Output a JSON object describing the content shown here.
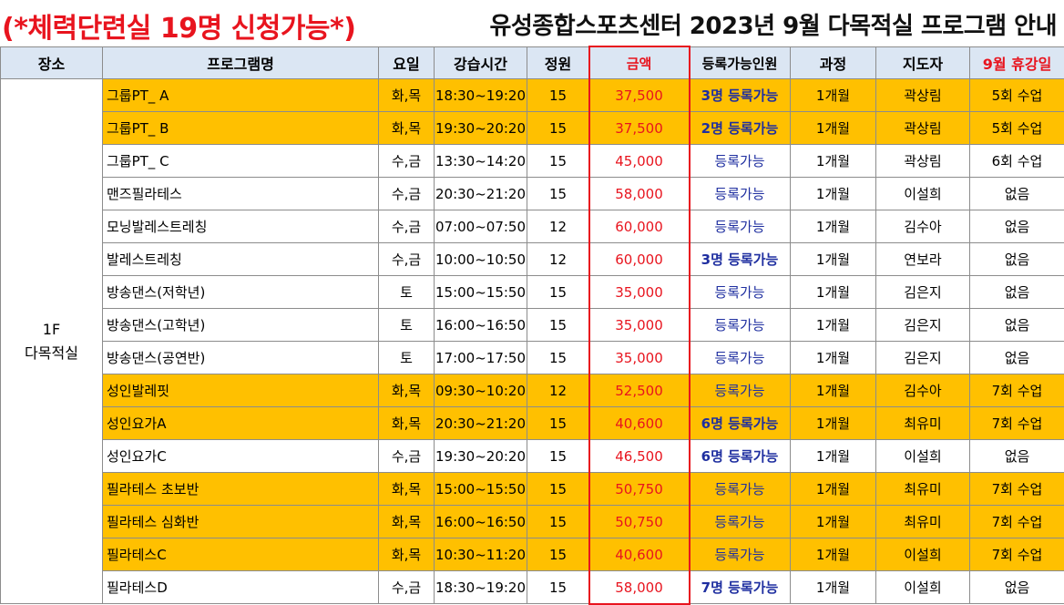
{
  "header": {
    "notice": "(*체력단련실 19명 신청가능*)",
    "title": "유성종합스포츠센터  2023년 9월 다목적실 프로그램 안내"
  },
  "columns": [
    "장소",
    "프로그램명",
    "요일",
    "강습시간",
    "정원",
    "금액",
    "등록가능인원",
    "과정",
    "지도자",
    "9월 휴강일"
  ],
  "location": {
    "line1": "1F",
    "line2": "다목적실"
  },
  "rows": [
    {
      "program": "그룹PT_ A",
      "days": "화,목",
      "time": "18:30~19:20",
      "capacity": "15",
      "price": "37,500",
      "available": "3명 등록가능",
      "course": "1개월",
      "instructor": "곽상림",
      "rest": "5회 수업",
      "highlight": true,
      "avail_bold": true
    },
    {
      "program": "그룹PT_ B",
      "days": "화,목",
      "time": "19:30~20:20",
      "capacity": "15",
      "price": "37,500",
      "available": "2명 등록가능",
      "course": "1개월",
      "instructor": "곽상림",
      "rest": "5회 수업",
      "highlight": true,
      "avail_bold": true
    },
    {
      "program": "그룹PT_ C",
      "days": "수,금",
      "time": "13:30~14:20",
      "capacity": "15",
      "price": "45,000",
      "available": "등록가능",
      "course": "1개월",
      "instructor": "곽상림",
      "rest": "6회 수업",
      "highlight": false,
      "avail_bold": false
    },
    {
      "program": "맨즈필라테스",
      "days": "수,금",
      "time": "20:30~21:20",
      "capacity": "15",
      "price": "58,000",
      "available": "등록가능",
      "course": "1개월",
      "instructor": "이설희",
      "rest": "없음",
      "highlight": false,
      "avail_bold": false
    },
    {
      "program": "모닝발레스트레칭",
      "days": "수,금",
      "time": "07:00~07:50",
      "capacity": "12",
      "price": "60,000",
      "available": "등록가능",
      "course": "1개월",
      "instructor": "김수아",
      "rest": "없음",
      "highlight": false,
      "avail_bold": false
    },
    {
      "program": "발레스트레칭",
      "days": "수,금",
      "time": "10:00~10:50",
      "capacity": "12",
      "price": "60,000",
      "available": "3명 등록가능",
      "course": "1개월",
      "instructor": "연보라",
      "rest": "없음",
      "highlight": false,
      "avail_bold": true
    },
    {
      "program": "방송댄스(저학년)",
      "days": "토",
      "time": "15:00~15:50",
      "capacity": "15",
      "price": "35,000",
      "available": "등록가능",
      "course": "1개월",
      "instructor": "김은지",
      "rest": "없음",
      "highlight": false,
      "avail_bold": false
    },
    {
      "program": "방송댄스(고학년)",
      "days": "토",
      "time": "16:00~16:50",
      "capacity": "15",
      "price": "35,000",
      "available": "등록가능",
      "course": "1개월",
      "instructor": "김은지",
      "rest": "없음",
      "highlight": false,
      "avail_bold": false
    },
    {
      "program": "방송댄스(공연반)",
      "days": "토",
      "time": "17:00~17:50",
      "capacity": "15",
      "price": "35,000",
      "available": "등록가능",
      "course": "1개월",
      "instructor": "김은지",
      "rest": "없음",
      "highlight": false,
      "avail_bold": false
    },
    {
      "program": "성인발레핏",
      "days": "화,목",
      "time": "09:30~10:20",
      "capacity": "12",
      "price": "52,500",
      "available": "등록가능",
      "course": "1개월",
      "instructor": "김수아",
      "rest": "7회 수업",
      "highlight": true,
      "avail_bold": false
    },
    {
      "program": "성인요가A",
      "days": "화,목",
      "time": "20:30~21:20",
      "capacity": "15",
      "price": "40,600",
      "available": "6명 등록가능",
      "course": "1개월",
      "instructor": "최유미",
      "rest": "7회 수업",
      "highlight": true,
      "avail_bold": true
    },
    {
      "program": "성인요가C",
      "days": "수,금",
      "time": "19:30~20:20",
      "capacity": "15",
      "price": "46,500",
      "available": "6명 등록가능",
      "course": "1개월",
      "instructor": "이설희",
      "rest": "없음",
      "highlight": false,
      "avail_bold": true
    },
    {
      "program": "필라테스 초보반",
      "days": "화,목",
      "time": "15:00~15:50",
      "capacity": "15",
      "price": "50,750",
      "available": "등록가능",
      "course": "1개월",
      "instructor": "최유미",
      "rest": "7회 수업",
      "highlight": true,
      "avail_bold": false
    },
    {
      "program": "필라테스 심화반",
      "days": "화,목",
      "time": "16:00~16:50",
      "capacity": "15",
      "price": "50,750",
      "available": "등록가능",
      "course": "1개월",
      "instructor": "최유미",
      "rest": "7회 수업",
      "highlight": true,
      "avail_bold": false
    },
    {
      "program": "필라테스C",
      "days": "화,목",
      "time": "10:30~11:20",
      "capacity": "15",
      "price": "40,600",
      "available": "등록가능",
      "course": "1개월",
      "instructor": "이설희",
      "rest": "7회 수업",
      "highlight": true,
      "avail_bold": false
    },
    {
      "program": "필라테스D",
      "days": "수,금",
      "time": "18:30~19:20",
      "capacity": "15",
      "price": "58,000",
      "available": "7명 등록가능",
      "course": "1개월",
      "instructor": "이설희",
      "rest": "없음",
      "highlight": false,
      "avail_bold": true
    }
  ],
  "colors": {
    "highlight_row": "#ffc000",
    "header_bg": "#dbe6f3",
    "price_red": "#e8141e",
    "available_blue": "#1f2fa0"
  }
}
